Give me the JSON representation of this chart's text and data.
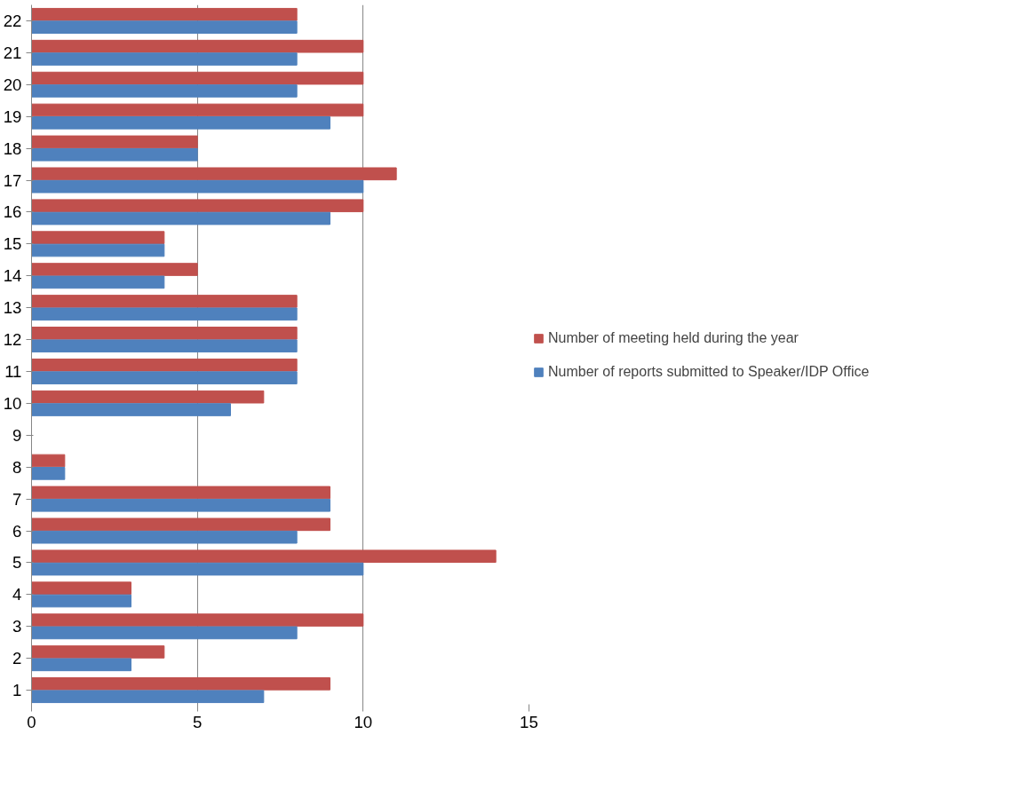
{
  "chart_data": {
    "type": "bar",
    "orientation": "horizontal",
    "categories": [
      "22",
      "21",
      "20",
      "19",
      "18",
      "17",
      "16",
      "15",
      "14",
      "13",
      "12",
      "11",
      "10",
      "9",
      "8",
      "7",
      "6",
      "5",
      "4",
      "3",
      "2",
      "1"
    ],
    "series": [
      {
        "name": "Number of meeting held during the year",
        "color": "#c0504d",
        "values": [
          8,
          10,
          10,
          10,
          5,
          11,
          10,
          4,
          5,
          8,
          8,
          8,
          7,
          null,
          1,
          9,
          9,
          14,
          3,
          10,
          4,
          9
        ]
      },
      {
        "name": "Number of reports submitted to Speaker/IDP Office",
        "color": "#4f81bd",
        "values": [
          8,
          8,
          8,
          9,
          5,
          10,
          9,
          4,
          4,
          8,
          8,
          8,
          6,
          null,
          1,
          9,
          8,
          10,
          3,
          8,
          3,
          7
        ]
      }
    ],
    "xlim": [
      0,
      15
    ],
    "xticks": [
      0,
      5,
      10,
      15
    ],
    "grid": "x",
    "legend": "right"
  }
}
